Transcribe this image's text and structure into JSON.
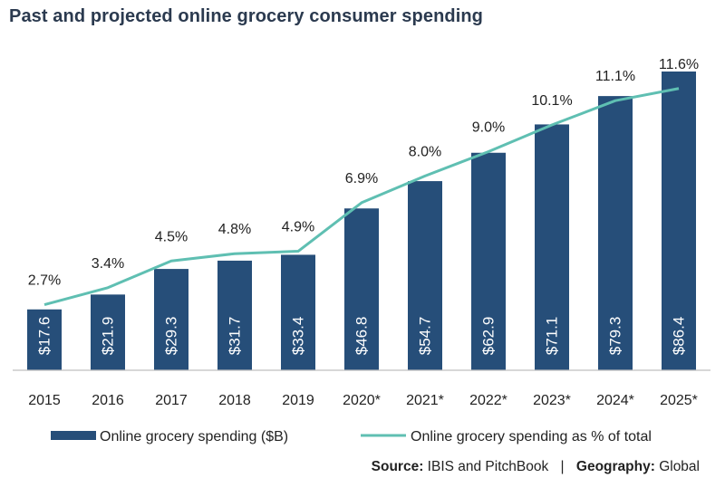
{
  "chart_data": {
    "type": "bar",
    "title": "Past and projected online grocery consumer spending",
    "categories": [
      "2015",
      "2016",
      "2017",
      "2018",
      "2019",
      "2020*",
      "2021*",
      "2022*",
      "2023*",
      "2024*",
      "2025*"
    ],
    "series": [
      {
        "name": "Online grocery spending ($B)",
        "type": "bar",
        "values": [
          17.6,
          21.9,
          29.3,
          31.7,
          33.4,
          46.8,
          54.7,
          62.9,
          71.1,
          79.3,
          86.4
        ],
        "labels": [
          "$17.6",
          "$21.9",
          "$29.3",
          "$31.7",
          "$33.4",
          "$46.8",
          "$54.7",
          "$62.9",
          "$71.1",
          "$79.3",
          "$86.4"
        ]
      },
      {
        "name": "Online grocery spending as % of total",
        "type": "line",
        "values": [
          2.7,
          3.4,
          4.5,
          4.8,
          4.9,
          6.9,
          8.0,
          9.0,
          10.1,
          11.1,
          11.6
        ],
        "labels": [
          "2.7%",
          "3.4%",
          "4.5%",
          "4.8%",
          "4.9%",
          "6.9%",
          "8.0%",
          "9.0%",
          "10.1%",
          "11.1%",
          "11.6%"
        ]
      }
    ],
    "bar_axis_range": [
      0,
      86.4
    ],
    "line_axis_range": [
      0,
      12.3
    ],
    "legend_position": "bottom",
    "grid": false,
    "colors": {
      "bar": "#264e79",
      "line": "#5fbfb2",
      "text": "#222222",
      "title": "#2b3a4f",
      "bar_label": "#ffffff"
    }
  },
  "source": {
    "source_label": "Source:",
    "source_value": "IBIS and PitchBook",
    "separator": "|",
    "geography_label": "Geography:",
    "geography_value": "Global"
  }
}
